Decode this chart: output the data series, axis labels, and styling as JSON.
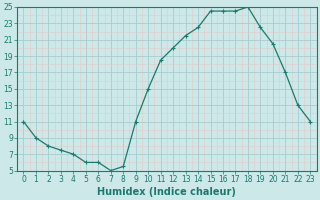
{
  "x": [
    0,
    1,
    2,
    3,
    4,
    5,
    6,
    7,
    8,
    9,
    10,
    11,
    12,
    13,
    14,
    15,
    16,
    17,
    18,
    19,
    20,
    21,
    22,
    23
  ],
  "y": [
    11,
    9,
    8,
    7.5,
    7,
    6,
    6,
    5,
    5.5,
    11,
    15,
    18.5,
    20,
    21.5,
    22.5,
    24.5,
    24.5,
    24.5,
    25,
    22.5,
    20.5,
    17,
    13,
    11
  ],
  "line_color": "#1a7a6e",
  "marker_color": "#1a7a6e",
  "bg_color": "#cce8e8",
  "major_grid_color": "#aacccc",
  "minor_grid_color": "#e8c8c8",
  "xlabel": "Humidex (Indice chaleur)",
  "xlim": [
    -0.5,
    23.5
  ],
  "ylim": [
    5,
    25
  ],
  "yticks": [
    5,
    7,
    9,
    11,
    13,
    15,
    17,
    19,
    21,
    23,
    25
  ],
  "xticks": [
    0,
    1,
    2,
    3,
    4,
    5,
    6,
    7,
    8,
    9,
    10,
    11,
    12,
    13,
    14,
    15,
    16,
    17,
    18,
    19,
    20,
    21,
    22,
    23
  ],
  "tick_label_fontsize": 5.5,
  "xlabel_fontsize": 7.0
}
